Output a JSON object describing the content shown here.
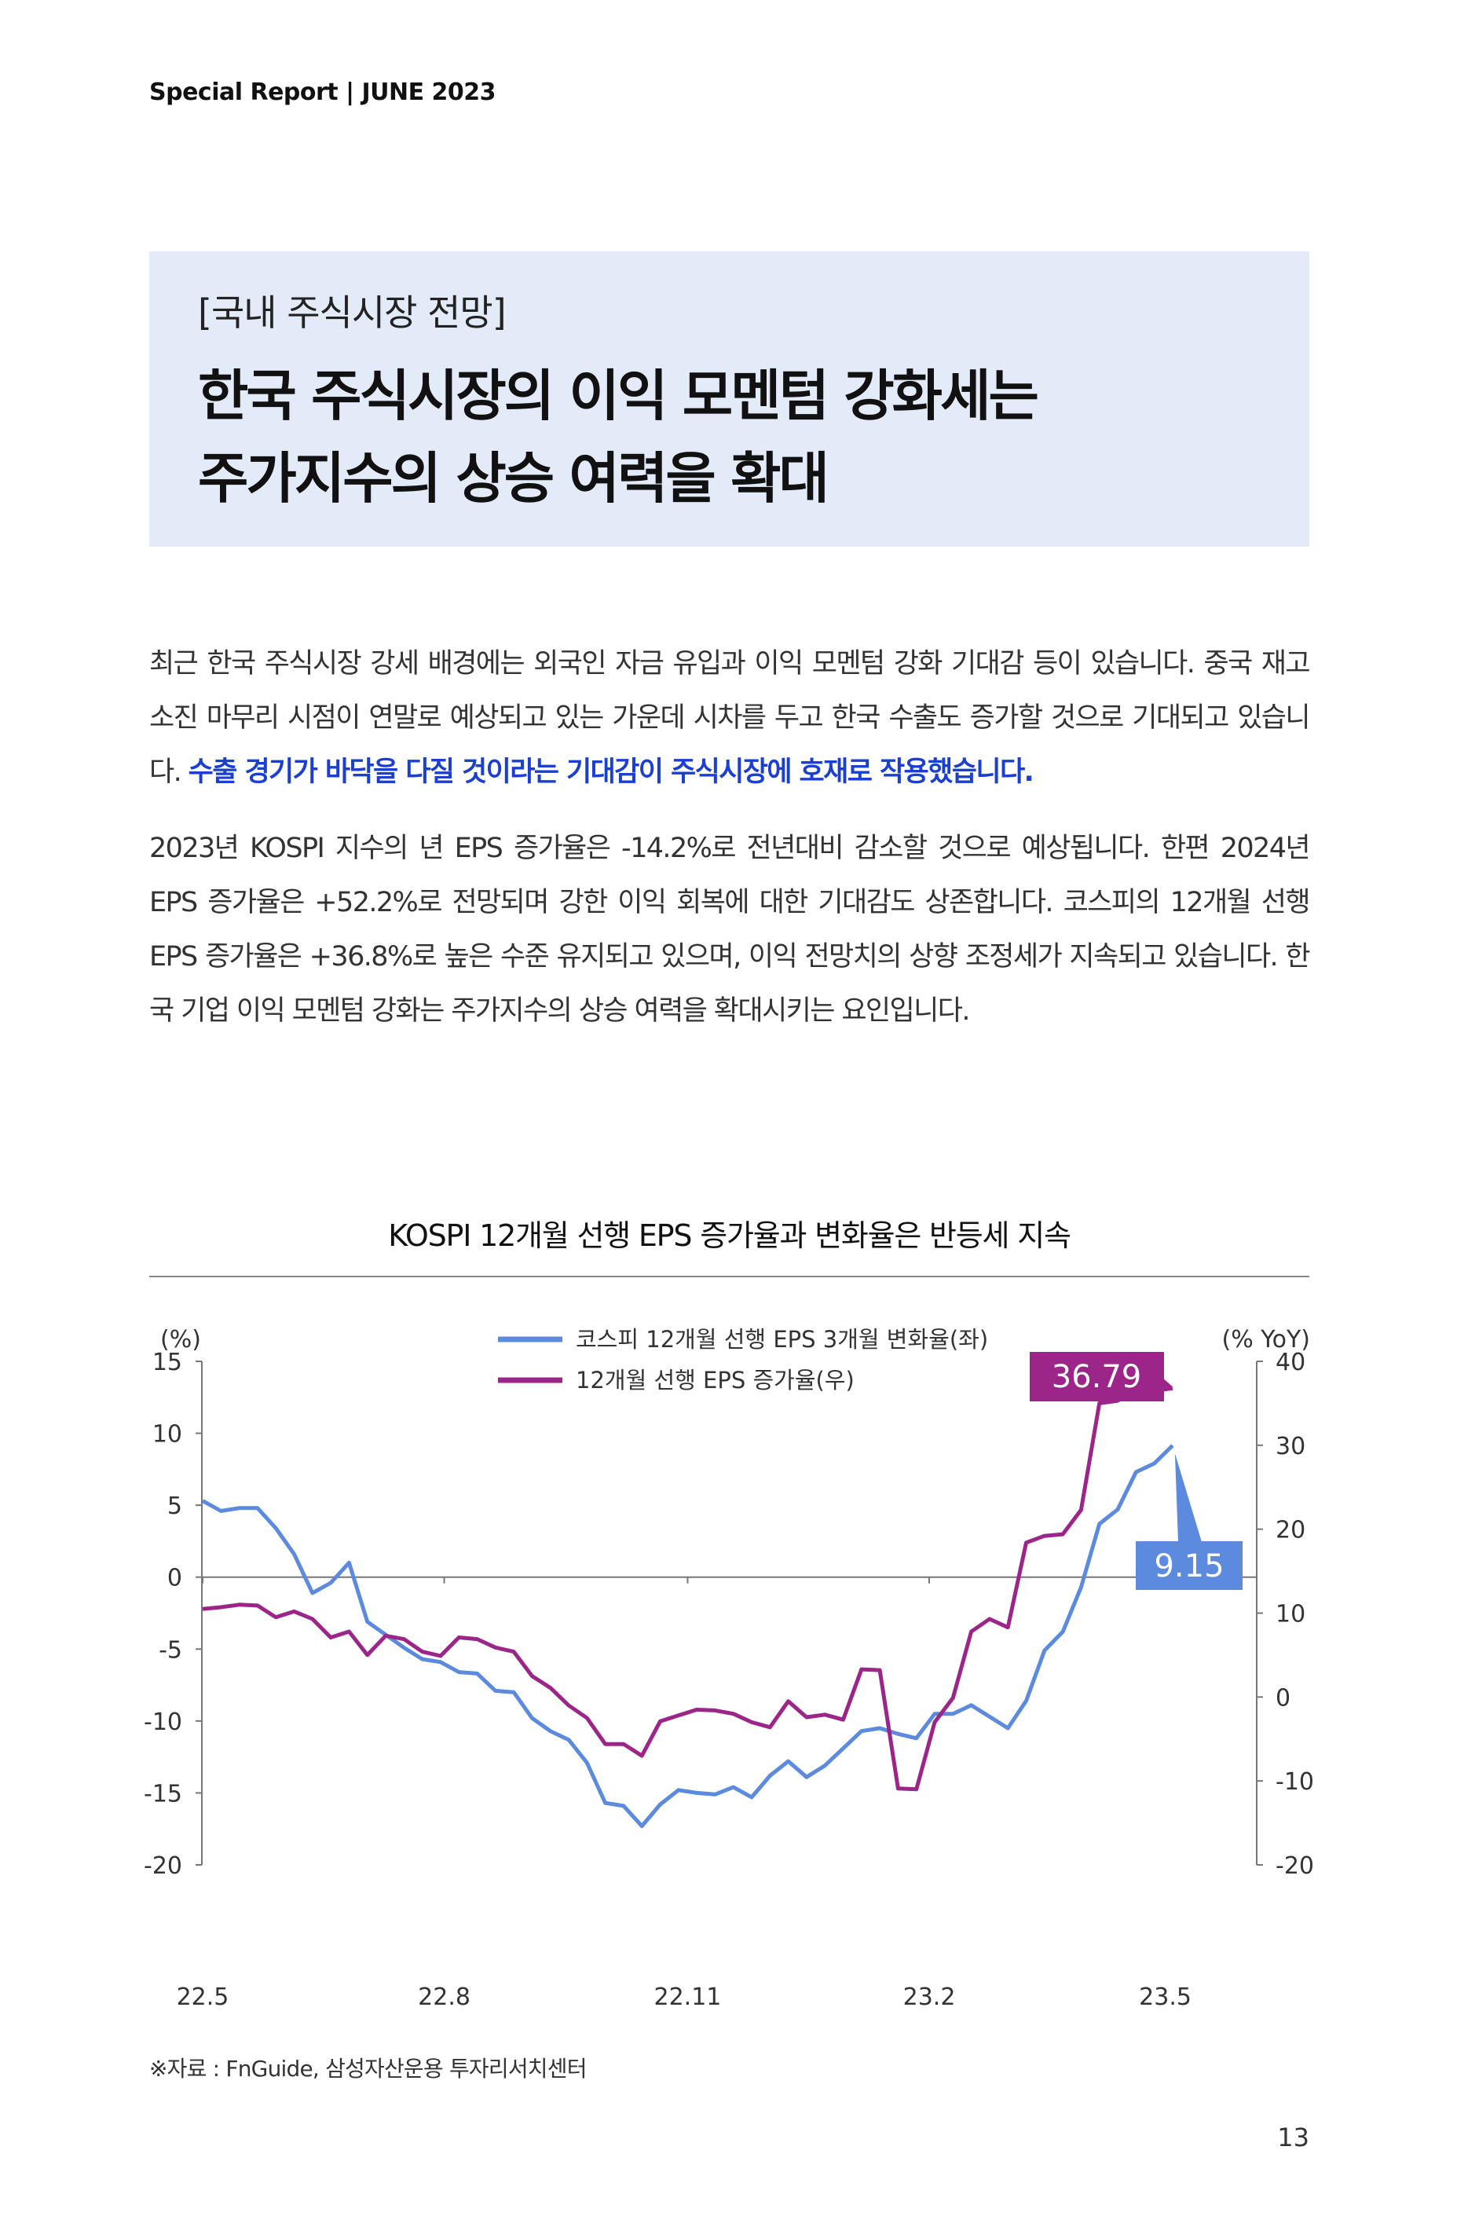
{
  "header": {
    "running_title": "Special Report | JUNE 2023"
  },
  "title_box": {
    "category": "[국내 주식시장 전망]",
    "title_lines": [
      "한국 주식시장의 이익 모멘텀 강화세는",
      "주가지수의 상승 여력을 확대"
    ]
  },
  "body": {
    "p1_text": "최근 한국 주식시장 강세 배경에는 외국인 자금 유입과 이익 모멘텀 강화 기대감 등이 있습니다. 중국 재고 소진 마무리 시점이 연말로 예상되고 있는 가운데 시차를 두고 한국 수출도 증가할 것으로 기대되고 있습니다. ",
    "p1_highlight": "수출 경기가 바닥을 다질 것이라는 기대감이 주식시장에 호재로 작용했습니다.",
    "p2_text": "2023년 KOSPI 지수의 년 EPS 증가율은 -14.2%로 전년대비 감소할 것으로 예상됩니다. 한편 2024년 EPS 증가율은 +52.2%로 전망되며 강한 이익 회복에 대한 기대감도 상존합니다. 코스피의 12개월 선행 EPS 증가율은 +36.8%로 높은 수준 유지되고 있으며, 이익 전망치의 상향 조정세가 지속되고 있습니다. 한국 기업 이익 모멘텀 강화는 주가지수의 상승 여력을 확대시키는 요인입니다."
  },
  "chart_data": {
    "type": "line",
    "title": "KOSPI 12개월 선행 EPS 증가율과 변화율은 반등세 지속",
    "left_axis": {
      "label": "(%)",
      "range": [
        -20,
        15
      ],
      "ticks": [
        "15",
        "10",
        "5",
        "0",
        "-5",
        "-10",
        "-15",
        "-20"
      ],
      "tick_values": [
        15,
        10,
        5,
        0,
        -5,
        -10,
        -15,
        -20
      ]
    },
    "right_axis": {
      "label": "(% YoY)",
      "range": [
        -20,
        40
      ],
      "ticks": [
        "40",
        "30",
        "20",
        "10",
        "0",
        "-10",
        "-20"
      ],
      "tick_values": [
        40,
        30,
        20,
        10,
        0,
        -10,
        -20
      ]
    },
    "x_ticks": [
      {
        "label": "22.5",
        "index": 0
      },
      {
        "label": "22.8",
        "index": 13.2
      },
      {
        "label": "22.11",
        "index": 26.5
      },
      {
        "label": "23.2",
        "index": 39.7
      },
      {
        "label": "23.5",
        "index": 52.6
      }
    ],
    "x_note": "weekly observations, May 2022 – May 2023",
    "legend_position": "top-center",
    "series": [
      {
        "name": "코스피 12개월 선행 EPS 3개월 변화율(좌)",
        "axis": "left",
        "color": "#5b8ade",
        "values": [
          5.3,
          4.6,
          4.8,
          4.8,
          3.4,
          1.6,
          -1.1,
          -0.4,
          1.0,
          -3.1,
          -4.0,
          -4.9,
          -5.7,
          -5.9,
          -6.6,
          -6.7,
          -7.9,
          -8.0,
          -9.8,
          -10.7,
          -11.3,
          -12.9,
          -15.7,
          -15.9,
          -17.3,
          -15.8,
          -14.8,
          -15.0,
          -15.1,
          -14.6,
          -15.3,
          -13.8,
          -12.8,
          -13.9,
          -13.1,
          -11.9,
          -10.7,
          -10.5,
          -10.9,
          -11.2,
          -9.5,
          -9.5,
          -8.9,
          -9.7,
          -10.5,
          -8.6,
          -5.1,
          -3.8,
          -0.7,
          3.7,
          4.7,
          7.3,
          7.9,
          9.15
        ],
        "end_label": "9.15"
      },
      {
        "name": "12개월 선행 EPS 증가율(우)",
        "axis": "right",
        "color": "#9c2589",
        "values": [
          10.5,
          10.7,
          11.0,
          10.9,
          9.5,
          10.2,
          9.3,
          7.1,
          7.8,
          5.0,
          7.3,
          6.9,
          5.4,
          4.9,
          7.1,
          6.9,
          5.9,
          5.4,
          2.5,
          1.1,
          -1.0,
          -2.5,
          -5.6,
          -5.6,
          -7.0,
          -2.9,
          -2.2,
          -1.5,
          -1.6,
          -2.0,
          -3.0,
          -3.6,
          -0.5,
          -2.4,
          -2.1,
          -2.7,
          3.3,
          3.2,
          -10.9,
          -11.0,
          -3.0,
          -0.1,
          7.8,
          9.3,
          8.3,
          18.4,
          19.2,
          19.4,
          22.3,
          35.0,
          35.3,
          36.7,
          36.5,
          36.79
        ],
        "end_label": "36.79"
      }
    ]
  },
  "source": "※자료 : FnGuide, 삼성자산운용 투자리서치센터",
  "page_number": "13"
}
